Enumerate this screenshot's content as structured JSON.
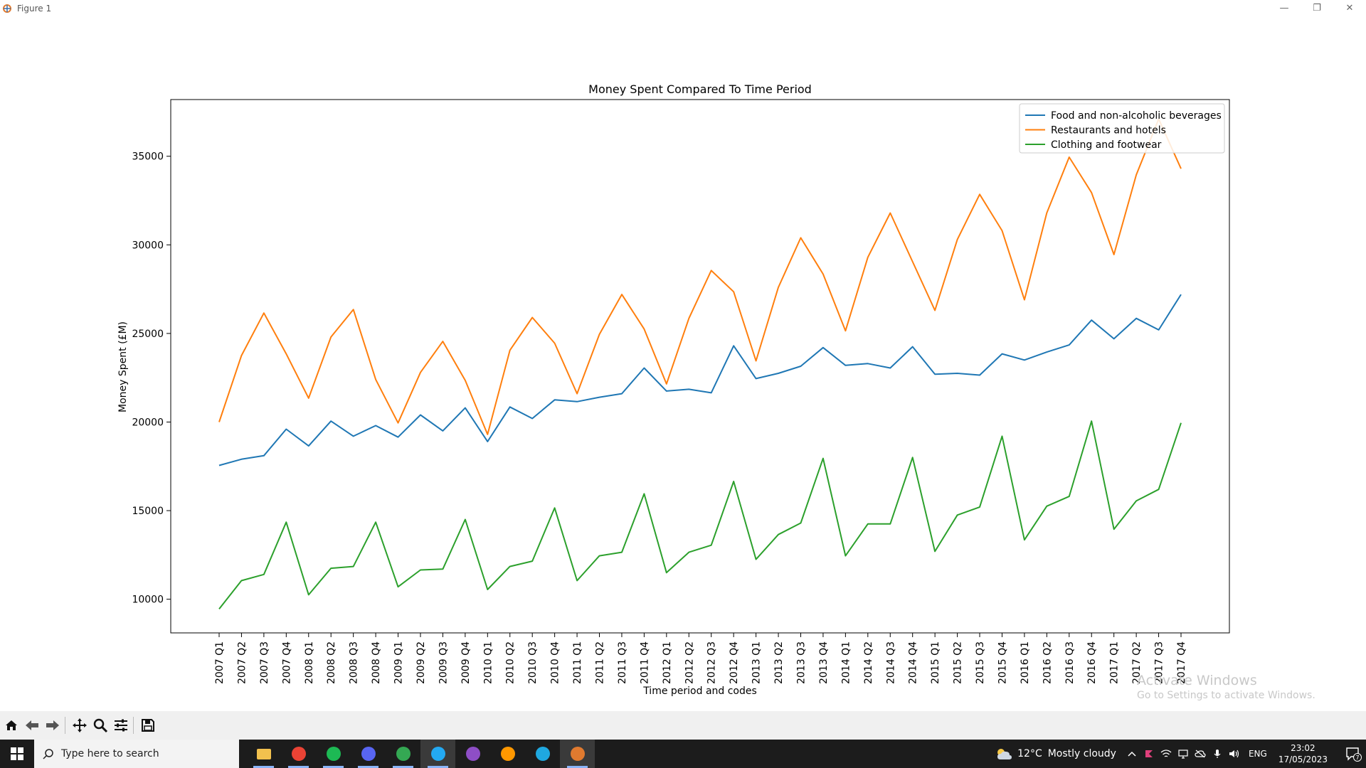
{
  "window": {
    "title": "Figure 1",
    "controls": {
      "minimize": "—",
      "restore": "❐",
      "close": "✕"
    }
  },
  "chart_data": {
    "type": "line",
    "title": "Money Spent Compared To Time Period",
    "xlabel": "Time period and codes",
    "ylabel": "Money Spent (£M)",
    "ylim": [
      8100,
      38200
    ],
    "yticks": [
      10000,
      15000,
      20000,
      25000,
      30000,
      35000
    ],
    "legend_position": "top-right",
    "grid": false,
    "categories": [
      "2007 Q1",
      "2007 Q2",
      "2007 Q3",
      "2007 Q4",
      "2008 Q1",
      "2008 Q2",
      "2008 Q3",
      "2008 Q4",
      "2009 Q1",
      "2009 Q2",
      "2009 Q3",
      "2009 Q4",
      "2010 Q1",
      "2010 Q2",
      "2010 Q3",
      "2010 Q4",
      "2011 Q1",
      "2011 Q2",
      "2011 Q3",
      "2011 Q4",
      "2012 Q1",
      "2012 Q2",
      "2012 Q3",
      "2012 Q4",
      "2013 Q1",
      "2013 Q2",
      "2013 Q3",
      "2013 Q4",
      "2014 Q1",
      "2014 Q2",
      "2014 Q3",
      "2014 Q4",
      "2015 Q1",
      "2015 Q2",
      "2015 Q3",
      "2015 Q4",
      "2016 Q1",
      "2016 Q2",
      "2016 Q3",
      "2016 Q4",
      "2017 Q1",
      "2017 Q2",
      "2017 Q3",
      "2017 Q4"
    ],
    "series": [
      {
        "name": "Food and non-alcoholic beverages",
        "color": "#1f77b4",
        "values": [
          17550,
          17900,
          18100,
          19600,
          18650,
          20050,
          19200,
          19800,
          19150,
          20400,
          19500,
          20800,
          18900,
          20850,
          20200,
          21250,
          21150,
          21400,
          21600,
          23050,
          21750,
          21850,
          21650,
          24300,
          22450,
          22750,
          23150,
          24200,
          23200,
          23300,
          23050,
          24250,
          22700,
          22750,
          22650,
          23850,
          23500,
          23950,
          24350,
          25750,
          24700,
          25850,
          25200,
          27200
        ]
      },
      {
        "name": "Restaurants and hotels",
        "color": "#ff7f0e",
        "values": [
          20000,
          23750,
          26150,
          23850,
          21350,
          24800,
          26350,
          22400,
          19950,
          22800,
          24550,
          22350,
          19300,
          24050,
          25900,
          24450,
          21600,
          24950,
          27200,
          25250,
          22150,
          25850,
          28550,
          27350,
          23450,
          27600,
          30400,
          28350,
          25150,
          29300,
          31800,
          29050,
          26300,
          30300,
          32850,
          30800,
          26900,
          31800,
          34950,
          32950,
          29450,
          33950,
          37100,
          34300
        ]
      },
      {
        "name": "Clothing and footwear",
        "color": "#2ca02c",
        "values": [
          9450,
          11050,
          11400,
          14350,
          10250,
          11750,
          11850,
          14350,
          10700,
          11650,
          11700,
          14500,
          10550,
          11850,
          12150,
          15150,
          11050,
          12450,
          12650,
          15950,
          11500,
          12650,
          13050,
          16650,
          12250,
          13650,
          14300,
          17950,
          12450,
          14250,
          14250,
          18000,
          12700,
          14750,
          15200,
          19200,
          13350,
          15250,
          15800,
          20050,
          13950,
          15550,
          16200,
          19950
        ]
      }
    ]
  },
  "toolbar": {
    "buttons": [
      "home-icon",
      "back-icon",
      "forward-icon",
      "pan-icon",
      "zoom-icon",
      "configure-icon",
      "save-icon"
    ]
  },
  "watermark": {
    "title": "Activate Windows",
    "subtitle": "Go to Settings to activate Windows."
  },
  "taskbar": {
    "search_placeholder": "Type here to search",
    "apps": [
      {
        "name": "file-explorer-icon",
        "color": "#f2c14e"
      },
      {
        "name": "chrome-icon",
        "color": "#ea4335"
      },
      {
        "name": "spotify-icon",
        "color": "#1db954"
      },
      {
        "name": "discord-icon",
        "color": "#5865f2"
      },
      {
        "name": "chrome-profile-icon",
        "color": "#34a853"
      },
      {
        "name": "vscode-icon",
        "color": "#23a9f2"
      },
      {
        "name": "github-desktop-icon",
        "color": "#8e4ec6"
      },
      {
        "name": "sublime-text-icon",
        "color": "#ff9800"
      },
      {
        "name": "edge-icon",
        "color": "#1fa8e0"
      },
      {
        "name": "python-figure-icon",
        "color": "#e07a2f"
      }
    ],
    "weather_temp": "12°C",
    "weather_text": "Mostly cloudy",
    "language": "ENG",
    "time": "23:02",
    "date": "17/05/2023",
    "notifications": "7"
  }
}
